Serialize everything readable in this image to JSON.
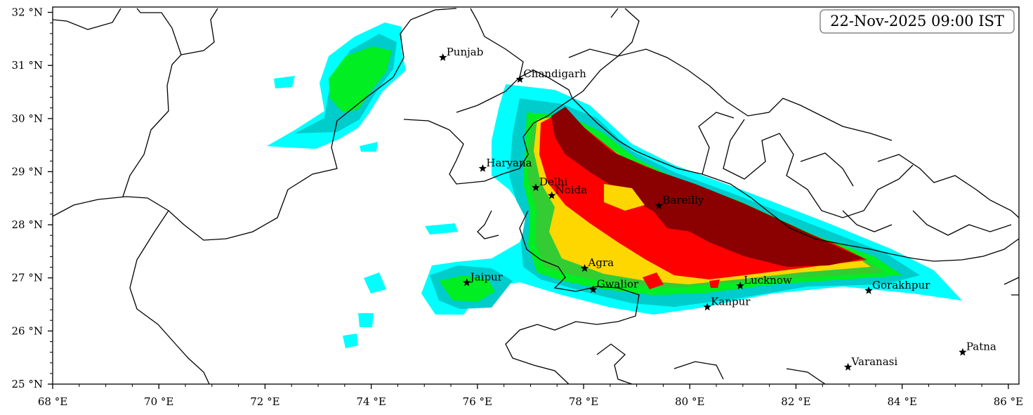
{
  "timestamp": "22-Nov-2025 09:00 IST",
  "axes": {
    "x_ticks": [
      "68 °E",
      "70 °E",
      "72 °E",
      "74 °E",
      "76 °E",
      "78 °E",
      "80 °E",
      "82 °E",
      "84 °E",
      "86 °E"
    ],
    "y_ticks": [
      "32 °N",
      "31 °N",
      "30 °N",
      "29 °N",
      "28 °N",
      "27 °N",
      "26 °N",
      "25 °N"
    ],
    "lon_range": [
      68,
      86.2
    ],
    "lat_range": [
      25,
      32.1
    ]
  },
  "fog_levels": [
    {
      "level": 1,
      "color": "#00ffff"
    },
    {
      "level": 2,
      "color": "#00cccc"
    },
    {
      "level": 3,
      "color": "#00ee22"
    },
    {
      "level": 4,
      "color": "#33cc33"
    },
    {
      "level": 5,
      "color": "#ffd700"
    },
    {
      "level": 6,
      "color": "#ff0000"
    },
    {
      "level": 7,
      "color": "#8b0000"
    }
  ],
  "cities": [
    {
      "name": "Punjab",
      "lon": 75.35,
      "lat": 31.15
    },
    {
      "name": "Chandigarh",
      "lon": 76.8,
      "lat": 30.74
    },
    {
      "name": "Haryana",
      "lon": 76.1,
      "lat": 29.06
    },
    {
      "name": "Delhi",
      "lon": 77.1,
      "lat": 28.7
    },
    {
      "name": "Noida",
      "lon": 77.4,
      "lat": 28.55
    },
    {
      "name": "Bareilly",
      "lon": 79.42,
      "lat": 28.36
    },
    {
      "name": "Agra",
      "lon": 78.02,
      "lat": 27.18
    },
    {
      "name": "Jaipur",
      "lon": 75.8,
      "lat": 26.91
    },
    {
      "name": "Gwalior",
      "lon": 78.18,
      "lat": 26.78
    },
    {
      "name": "Lucknow",
      "lon": 80.95,
      "lat": 26.85
    },
    {
      "name": "Kanpur",
      "lon": 80.33,
      "lat": 26.45
    },
    {
      "name": "Gorakhpur",
      "lon": 83.37,
      "lat": 26.76
    },
    {
      "name": "Patna",
      "lon": 85.14,
      "lat": 25.6
    },
    {
      "name": "Varanasi",
      "lon": 82.98,
      "lat": 25.32
    }
  ]
}
